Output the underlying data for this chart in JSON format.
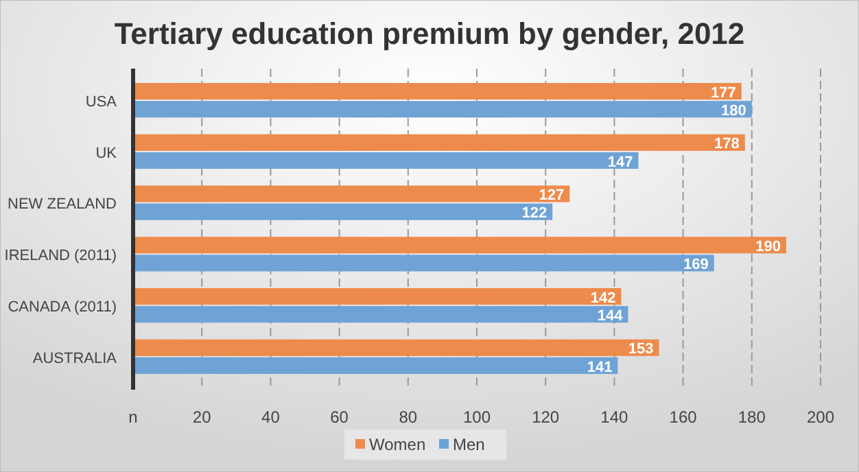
{
  "chart_data": {
    "type": "bar",
    "orientation": "horizontal",
    "title": "Tertiary education premium by gender, 2012",
    "categories": [
      "USA",
      "UK",
      "NEW ZEALAND",
      "IRELAND (2011)",
      "CANADA (2011)",
      "AUSTRALIA"
    ],
    "series": [
      {
        "name": "Women",
        "color": "#ed8b4c",
        "values": [
          177,
          178,
          127,
          190,
          142,
          153
        ]
      },
      {
        "name": "Men",
        "color": "#6fa3d6",
        "values": [
          180,
          147,
          122,
          169,
          144,
          141
        ]
      }
    ],
    "xlim": [
      0,
      200
    ],
    "xticks": [
      {
        "value": 0,
        "label": "n"
      },
      20,
      40,
      60,
      80,
      100,
      120,
      140,
      160,
      180,
      200
    ],
    "grid": "x",
    "legend": "bottom",
    "data_labels": true
  }
}
